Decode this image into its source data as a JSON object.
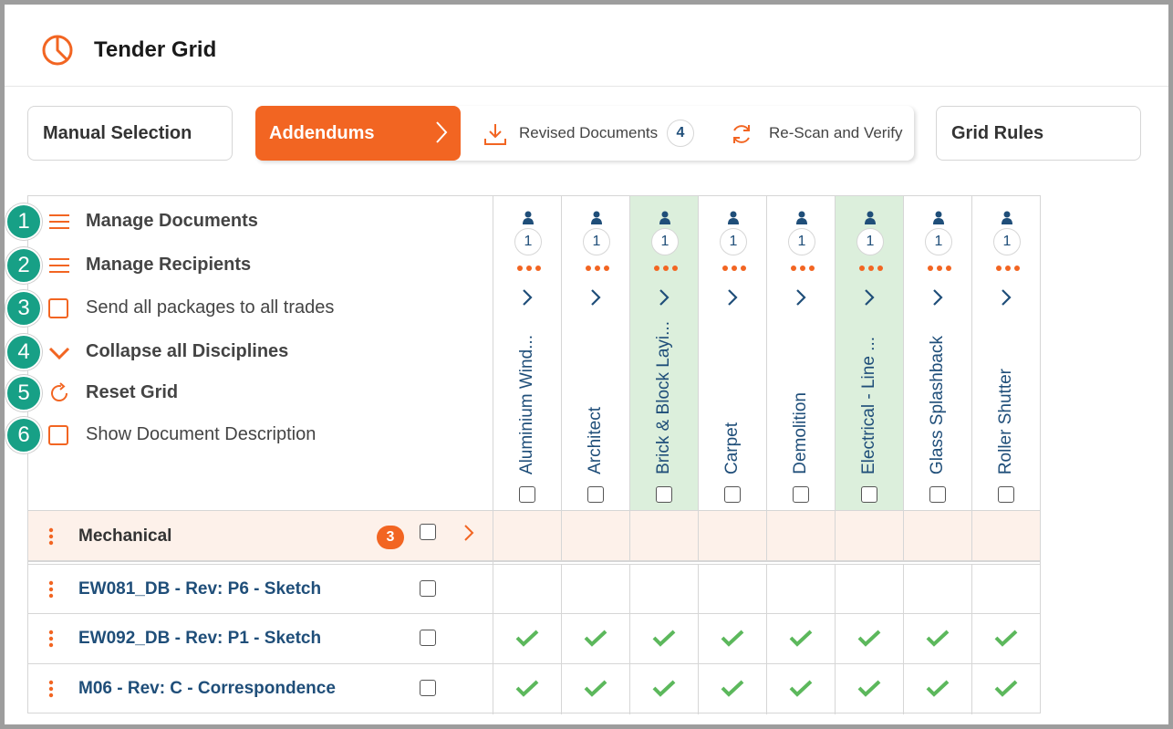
{
  "header": {
    "title": "Tender Grid",
    "logo_icon": "pie-chart-icon"
  },
  "toolbar": {
    "manual_selection": "Manual Selection",
    "steps": {
      "active": "Addendums",
      "revised": "Revised Documents",
      "revised_count": "4",
      "rescan": "Re-Scan and Verify"
    },
    "grid_rules": "Grid Rules"
  },
  "menu": {
    "items": [
      {
        "num": "1",
        "label": "Manage Documents",
        "icon": "hamburger-icon"
      },
      {
        "num": "2",
        "label": "Manage Recipients",
        "icon": "hamburger-icon"
      },
      {
        "num": "3",
        "label": "Send all packages to all trades",
        "icon": "checkbox"
      },
      {
        "num": "4",
        "label": "Collapse all Disciplines",
        "icon": "chevron-down-icon"
      },
      {
        "num": "5",
        "label": "Reset Grid",
        "icon": "refresh-icon"
      },
      {
        "num": "6",
        "label": "Show Document Description",
        "icon": "checkbox"
      }
    ]
  },
  "columns": [
    {
      "label": "Aluminium Wind...",
      "count": "1",
      "highlight": false
    },
    {
      "label": "Architect",
      "count": "1",
      "highlight": false
    },
    {
      "label": "Brick & Block Layi...",
      "count": "1",
      "highlight": true
    },
    {
      "label": "Carpet",
      "count": "1",
      "highlight": false
    },
    {
      "label": "Demolition",
      "count": "1",
      "highlight": false
    },
    {
      "label": "Electrical - Line ...",
      "count": "1",
      "highlight": true
    },
    {
      "label": "Glass Splashback",
      "count": "1",
      "highlight": false
    },
    {
      "label": "Roller Shutter",
      "count": "1",
      "highlight": false
    }
  ],
  "group": {
    "label": "Mechanical",
    "count": "3"
  },
  "rows": [
    {
      "label": "EW081_DB - Rev: P6 - Sketch",
      "ticks": [
        false,
        false,
        false,
        false,
        false,
        false,
        false,
        false
      ]
    },
    {
      "label": "EW092_DB - Rev: P1 - Sketch",
      "ticks": [
        true,
        true,
        true,
        true,
        true,
        true,
        true,
        true
      ]
    },
    {
      "label": "M06 - Rev: C - Correspondence",
      "ticks": [
        true,
        true,
        true,
        true,
        true,
        true,
        true,
        true
      ]
    }
  ],
  "colors": {
    "accent": "#f26522",
    "navy": "#1f4e79",
    "teal": "#17a086",
    "green": "#5cb85c",
    "highlight": "#dcefdc"
  }
}
